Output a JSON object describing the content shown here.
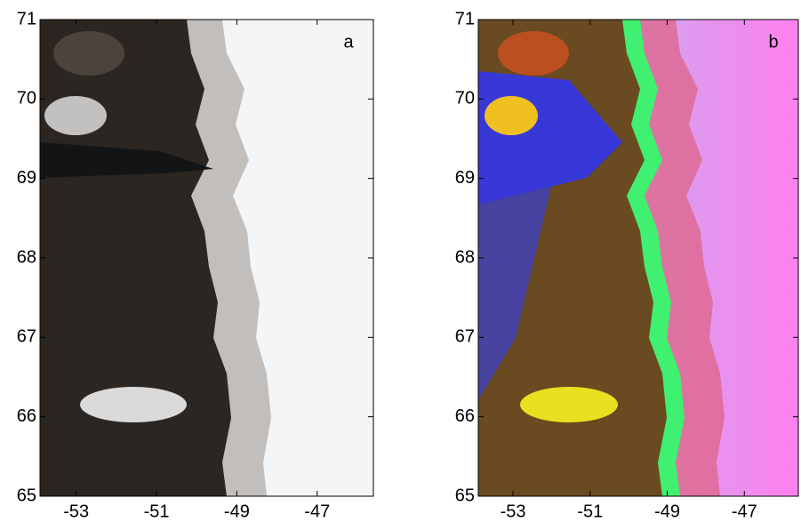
{
  "panels": [
    {
      "label": "a",
      "xlim": [
        -53.9,
        -45.6
      ],
      "ylim": [
        65,
        71
      ],
      "xticks": [
        -53,
        -51,
        -49,
        -47
      ],
      "yticks": [
        65,
        66,
        67,
        68,
        69,
        70,
        71
      ]
    },
    {
      "label": "b",
      "xlim": [
        -53.9,
        -45.6
      ],
      "ylim": [
        65,
        71
      ],
      "xticks": [
        -53,
        -51,
        -49,
        -47
      ],
      "yticks": [
        65,
        66,
        67,
        68,
        69,
        70,
        71
      ]
    }
  ]
}
